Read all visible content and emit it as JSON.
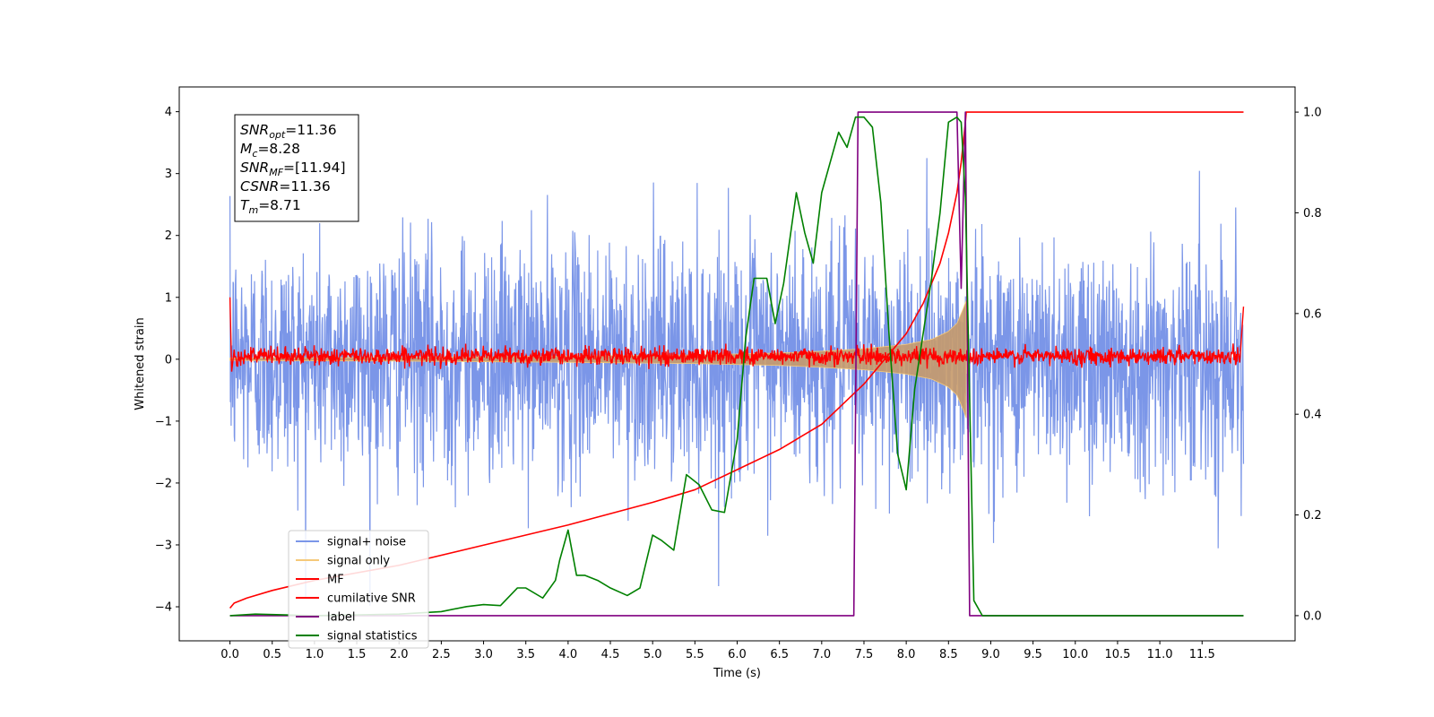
{
  "chart_data": {
    "type": "line",
    "xlabel": "Time (s)",
    "ylabel_left": "Whitened strain",
    "xlim": [
      -0.6,
      12.6
    ],
    "ylim_left": [
      -4.55,
      4.4
    ],
    "ylim_right": [
      -0.05,
      1.05
    ],
    "x_ticks": [
      "0.0",
      "0.5",
      "1.0",
      "1.5",
      "2.0",
      "2.5",
      "3.0",
      "3.5",
      "4.0",
      "4.5",
      "5.0",
      "5.5",
      "6.0",
      "6.5",
      "7.0",
      "7.5",
      "8.0",
      "8.5",
      "9.0",
      "9.5",
      "10.0",
      "10.5",
      "11.0",
      "11.5"
    ],
    "y_ticks_left": [
      "4",
      "3",
      "2",
      "1",
      "0",
      "−1",
      "−2",
      "−3",
      "−4"
    ],
    "y_ticks_right": [
      "1.0",
      "0.8",
      "0.6",
      "0.4",
      "0.2",
      "0.0"
    ],
    "annotation": {
      "lines": [
        {
          "base": "SNR",
          "sub": "opt",
          "rest": "=11.36"
        },
        {
          "base": "M",
          "sub": "c",
          "rest": "=8.28"
        },
        {
          "base": "SNR",
          "sub": "MF",
          "rest": "=[11.94]"
        },
        {
          "base": "CSNR",
          "sub": "",
          "rest": "=11.36"
        },
        {
          "base": "T",
          "sub": "m",
          "rest": "=8.71"
        }
      ]
    },
    "legend": {
      "placement": "lower-left",
      "entries": [
        {
          "label": "signal+ noise",
          "color": "#7b96e8"
        },
        {
          "label": "signal only",
          "color": "#f5c97a"
        },
        {
          "label": "MF",
          "color": "#ff0000"
        },
        {
          "label": "cumilative SNR",
          "color": "#ff0000"
        },
        {
          "label": "label",
          "color": "#800080"
        },
        {
          "label": "signal statistics",
          "color": "#008000"
        }
      ]
    },
    "series": [
      {
        "name": "signal+ noise",
        "axis": "left",
        "kind": "noise",
        "x_range": [
          0,
          11.99
        ],
        "color": "#7b96e8",
        "amplitude_sd": 0.95,
        "mean": 0.0,
        "clip": [
          -4.15,
          3.25
        ]
      },
      {
        "name": "signal only",
        "axis": "left",
        "kind": "chirp",
        "x_range": [
          0,
          8.71
        ],
        "color": "#f5c97a",
        "envelope": {
          "x": [
            0.0,
            2.0,
            4.0,
            5.5,
            6.5,
            7.0,
            7.5,
            8.0,
            8.3,
            8.5,
            8.6,
            8.67,
            8.71
          ],
          "y": [
            0.02,
            0.03,
            0.05,
            0.07,
            0.1,
            0.13,
            0.17,
            0.24,
            0.32,
            0.45,
            0.58,
            0.8,
            0.95
          ]
        }
      },
      {
        "name": "MF",
        "axis": "left",
        "kind": "mf",
        "x_range": [
          0,
          11.99
        ],
        "color": "#ff0000",
        "points": [
          [
            0.0,
            1.0
          ],
          [
            0.02,
            -0.2
          ],
          [
            0.05,
            0.25
          ],
          [
            11.96,
            0.1
          ],
          [
            11.99,
            0.85
          ]
        ]
      },
      {
        "name": "cumilative SNR",
        "axis": "right",
        "color": "#ff0000",
        "x": [
          0.0,
          0.05,
          0.2,
          0.5,
          1.0,
          2.0,
          3.0,
          4.0,
          5.0,
          5.5,
          6.0,
          6.5,
          7.0,
          7.5,
          8.0,
          8.2,
          8.4,
          8.5,
          8.6,
          8.65,
          8.7,
          8.71,
          9.0,
          10.0,
          11.0,
          11.99
        ],
        "y": [
          0.015,
          0.025,
          0.035,
          0.05,
          0.07,
          0.1,
          0.14,
          0.18,
          0.225,
          0.25,
          0.29,
          0.33,
          0.38,
          0.46,
          0.56,
          0.62,
          0.7,
          0.76,
          0.84,
          0.9,
          0.98,
          1.0,
          1.0,
          1.0,
          1.0,
          1.0
        ]
      },
      {
        "name": "label",
        "axis": "right",
        "color": "#800080",
        "x": [
          0.0,
          7.38,
          7.43,
          8.6,
          8.65,
          8.7,
          8.75,
          11.99
        ],
        "y": [
          0.0,
          0.0,
          1.0,
          1.0,
          0.65,
          1.0,
          0.0,
          0.0
        ]
      },
      {
        "name": "signal statistics",
        "axis": "right",
        "color": "#008000",
        "x": [
          0.0,
          0.3,
          1.0,
          2.0,
          2.5,
          2.8,
          3.0,
          3.2,
          3.4,
          3.5,
          3.7,
          3.85,
          3.9,
          4.0,
          4.1,
          4.2,
          4.35,
          4.5,
          4.7,
          4.85,
          5.0,
          5.1,
          5.25,
          5.4,
          5.55,
          5.7,
          5.85,
          6.0,
          6.1,
          6.2,
          6.35,
          6.45,
          6.55,
          6.7,
          6.8,
          6.9,
          7.0,
          7.2,
          7.3,
          7.4,
          7.5,
          7.6,
          7.7,
          7.8,
          7.9,
          8.0,
          8.1,
          8.3,
          8.4,
          8.5,
          8.6,
          8.65,
          8.7,
          8.8,
          8.9,
          11.99
        ],
        "y": [
          0.0,
          0.003,
          0.0,
          0.003,
          0.008,
          0.018,
          0.022,
          0.02,
          0.055,
          0.055,
          0.035,
          0.07,
          0.11,
          0.17,
          0.08,
          0.08,
          0.07,
          0.055,
          0.04,
          0.055,
          0.16,
          0.15,
          0.13,
          0.28,
          0.26,
          0.21,
          0.205,
          0.35,
          0.55,
          0.67,
          0.67,
          0.58,
          0.66,
          0.84,
          0.76,
          0.7,
          0.84,
          0.96,
          0.93,
          0.99,
          0.99,
          0.97,
          0.82,
          0.55,
          0.32,
          0.25,
          0.45,
          0.67,
          0.8,
          0.98,
          0.99,
          0.98,
          0.83,
          0.03,
          0.0,
          0.0
        ]
      }
    ]
  }
}
